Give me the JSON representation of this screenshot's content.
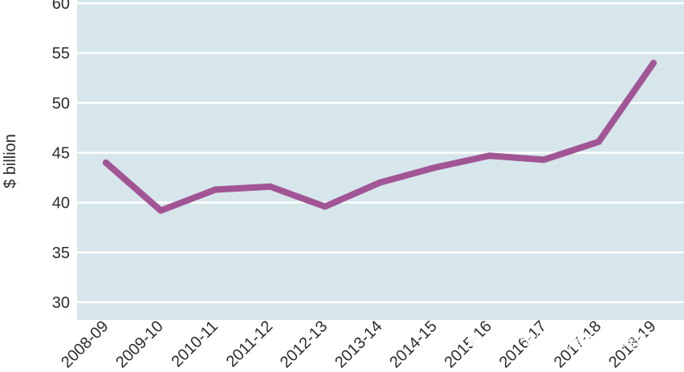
{
  "chart_data": {
    "type": "line",
    "ylabel": "$ billion",
    "xlabel": "",
    "ylim": [
      30,
      60
    ],
    "yticks": [
      30,
      35,
      40,
      45,
      50,
      55,
      60
    ],
    "grid": true,
    "categories": [
      "2008-09",
      "2009-10",
      "2010-11",
      "2011-12",
      "2012-13",
      "2013-14",
      "2014-15",
      "2015-16",
      "2016-17",
      "2017-18",
      "2018-19"
    ],
    "series": [
      {
        "values": [
          44.0,
          39.2,
          41.3,
          41.6,
          39.6,
          42.0,
          43.5,
          44.7,
          44.3,
          46.1,
          54.0
        ]
      }
    ]
  },
  "colors": {
    "plot_bg": "#d6e6eb",
    "gridline": "#ffffff",
    "line": "#a25595"
  },
  "watermark": {
    "text": "澳大利亚瑞德控股集团",
    "icon": "wechat-icon"
  }
}
